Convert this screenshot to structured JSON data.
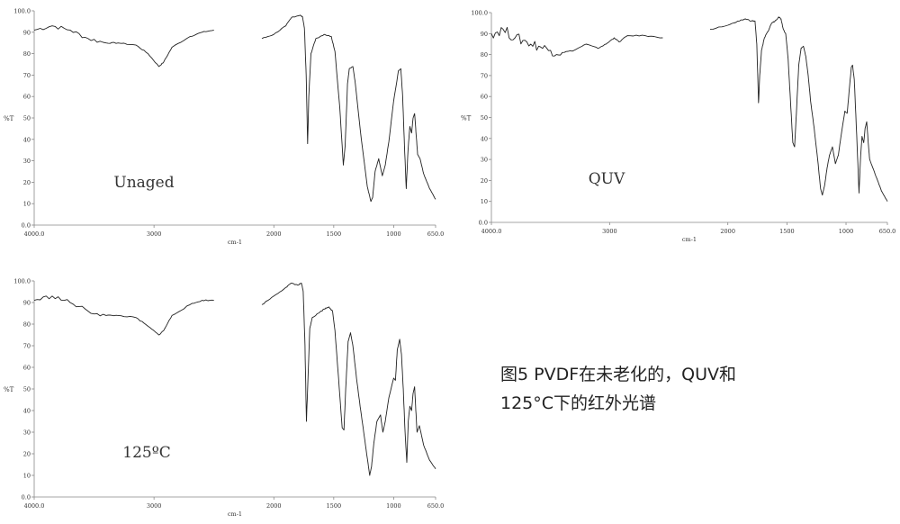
{
  "chart_data": [
    {
      "type": "line",
      "label": "Unaged",
      "xlabel": "cm-1",
      "ylabel": "%T",
      "xlim": [
        4000,
        650
      ],
      "ylim": [
        0,
        100
      ],
      "x_ticks": [
        "4000.0",
        "3000",
        "2000",
        "1500",
        "1000",
        "650.0"
      ],
      "y_ticks": [
        "0.0",
        "10",
        "20",
        "30",
        "40",
        "50",
        "60",
        "70",
        "80",
        "90",
        "100.0"
      ],
      "series": [
        {
          "segments": [
            [
              [
                4000,
                91
              ],
              [
                3850,
                93
              ],
              [
                3700,
                91
              ],
              [
                3550,
                87
              ],
              [
                3400,
                85
              ],
              [
                3300,
                85
              ],
              [
                3150,
                84
              ],
              [
                3050,
                80
              ],
              [
                2960,
                74
              ],
              [
                2920,
                76
              ],
              [
                2850,
                83
              ],
              [
                2700,
                88
              ],
              [
                2600,
                90
              ],
              [
                2500,
                91
              ]
            ],
            [
              [
                2100,
                87
              ],
              [
                2000,
                89
              ],
              [
                1900,
                93
              ],
              [
                1850,
                97
              ],
              [
                1780,
                98
              ],
              [
                1760,
                97
              ],
              [
                1745,
                92
              ],
              [
                1730,
                70
              ],
              [
                1718,
                38
              ],
              [
                1708,
                60
              ],
              [
                1690,
                80
              ],
              [
                1650,
                87
              ],
              [
                1580,
                89
              ],
              [
                1520,
                88
              ],
              [
                1490,
                81
              ],
              [
                1450,
                55
              ],
              [
                1420,
                28
              ],
              [
                1405,
                37
              ],
              [
                1385,
                66
              ],
              [
                1370,
                73
              ],
              [
                1340,
                74
              ],
              [
                1320,
                66
              ],
              [
                1270,
                40
              ],
              [
                1220,
                18
              ],
              [
                1190,
                11
              ],
              [
                1175,
                13
              ],
              [
                1155,
                25
              ],
              [
                1125,
                31
              ],
              [
                1095,
                23
              ],
              [
                1070,
                28
              ],
              [
                1040,
                39
              ],
              [
                1000,
                58
              ],
              [
                960,
                72
              ],
              [
                940,
                73
              ],
              [
                925,
                60
              ],
              [
                910,
                37
              ],
              [
                895,
                17
              ],
              [
                880,
                35
              ],
              [
                865,
                46
              ],
              [
                850,
                43
              ],
              [
                838,
                50
              ],
              [
                825,
                52
              ],
              [
                812,
                42
              ],
              [
                800,
                33
              ],
              [
                780,
                31
              ],
              [
                750,
                24
              ],
              [
                700,
                17
              ],
              [
                650,
                12
              ]
            ]
          ]
        }
      ]
    },
    {
      "type": "line",
      "label": "QUV",
      "xlabel": "cm-1",
      "ylabel": "%T",
      "xlim": [
        4000,
        650
      ],
      "ylim": [
        0,
        100
      ],
      "x_ticks": [
        "4000.0",
        "3000",
        "2000",
        "1500",
        "1000",
        "650.0"
      ],
      "y_ticks": [
        "0.0",
        "10",
        "20",
        "30",
        "40",
        "50",
        "60",
        "70",
        "80",
        "90",
        "100.0"
      ],
      "series": [
        {
          "segments": [
            [
              [
                4000,
                90
              ],
              [
                3900,
                92
              ],
              [
                3800,
                88
              ],
              [
                3700,
                86
              ],
              [
                3600,
                84
              ],
              [
                3500,
                82
              ],
              [
                3400,
                81
              ],
              [
                3300,
                82
              ],
              [
                3200,
                85
              ],
              [
                3100,
                83
              ],
              [
                3030,
                85
              ],
              [
                2960,
                88
              ],
              [
                2920,
                86
              ],
              [
                2850,
                89
              ],
              [
                2700,
                89
              ],
              [
                2550,
                88
              ]
            ],
            [
              [
                2150,
                92
              ],
              [
                2000,
                94
              ],
              [
                1900,
                96
              ],
              [
                1850,
                97
              ],
              [
                1800,
                96
              ],
              [
                1770,
                96
              ],
              [
                1755,
                85
              ],
              [
                1740,
                57
              ],
              [
                1730,
                70
              ],
              [
                1715,
                82
              ],
              [
                1690,
                88
              ],
              [
                1660,
                91
              ],
              [
                1630,
                95
              ],
              [
                1600,
                96
              ],
              [
                1570,
                98
              ],
              [
                1550,
                97
              ],
              [
                1530,
                92
              ],
              [
                1510,
                90
              ],
              [
                1490,
                78
              ],
              [
                1470,
                58
              ],
              [
                1450,
                38
              ],
              [
                1435,
                36
              ],
              [
                1420,
                52
              ],
              [
                1400,
                75
              ],
              [
                1380,
                83
              ],
              [
                1360,
                84
              ],
              [
                1340,
                79
              ],
              [
                1320,
                70
              ],
              [
                1300,
                58
              ],
              [
                1270,
                45
              ],
              [
                1240,
                30
              ],
              [
                1215,
                16
              ],
              [
                1200,
                13
              ],
              [
                1180,
                18
              ],
              [
                1160,
                26
              ],
              [
                1140,
                32
              ],
              [
                1115,
                36
              ],
              [
                1090,
                28
              ],
              [
                1065,
                32
              ],
              [
                1040,
                42
              ],
              [
                1010,
                53
              ],
              [
                990,
                52
              ],
              [
                970,
                65
              ],
              [
                955,
                74
              ],
              [
                945,
                75
              ],
              [
                930,
                68
              ],
              [
                920,
                55
              ],
              [
                905,
                35
              ],
              [
                890,
                14
              ],
              [
                878,
                30
              ],
              [
                865,
                41
              ],
              [
                850,
                38
              ],
              [
                838,
                45
              ],
              [
                825,
                48
              ],
              [
                812,
                38
              ],
              [
                800,
                30
              ],
              [
                780,
                27
              ],
              [
                740,
                21
              ],
              [
                700,
                15
              ],
              [
                650,
                10
              ]
            ]
          ]
        }
      ]
    },
    {
      "type": "line",
      "label": "125ºC",
      "xlabel": "cm-1",
      "ylabel": "%T",
      "xlim": [
        4000,
        650
      ],
      "ylim": [
        0,
        100
      ],
      "x_ticks": [
        "4000.0",
        "3000",
        "2000",
        "1500",
        "1000",
        "650.0"
      ],
      "y_ticks": [
        "0.0",
        "10",
        "20",
        "30",
        "40",
        "50",
        "60",
        "70",
        "80",
        "90",
        "100.0"
      ],
      "series": [
        {
          "segments": [
            [
              [
                4000,
                91
              ],
              [
                3850,
                93
              ],
              [
                3700,
                90
              ],
              [
                3550,
                86
              ],
              [
                3400,
                84
              ],
              [
                3300,
                84
              ],
              [
                3150,
                83
              ],
              [
                3050,
                79
              ],
              [
                2960,
                75
              ],
              [
                2920,
                77
              ],
              [
                2850,
                84
              ],
              [
                2700,
                89
              ],
              [
                2600,
                91
              ],
              [
                2500,
                91
              ]
            ],
            [
              [
                2100,
                89
              ],
              [
                2000,
                93
              ],
              [
                1900,
                97
              ],
              [
                1850,
                99
              ],
              [
                1800,
                98
              ],
              [
                1770,
                99
              ],
              [
                1755,
                95
              ],
              [
                1740,
                70
              ],
              [
                1728,
                35
              ],
              [
                1718,
                50
              ],
              [
                1700,
                78
              ],
              [
                1680,
                83
              ],
              [
                1630,
                85
              ],
              [
                1580,
                87
              ],
              [
                1540,
                88
              ],
              [
                1510,
                86
              ],
              [
                1490,
                77
              ],
              [
                1460,
                55
              ],
              [
                1430,
                32
              ],
              [
                1415,
                31
              ],
              [
                1400,
                50
              ],
              [
                1380,
                72
              ],
              [
                1360,
                76
              ],
              [
                1340,
                70
              ],
              [
                1310,
                55
              ],
              [
                1280,
                42
              ],
              [
                1250,
                30
              ],
              [
                1220,
                18
              ],
              [
                1200,
                10
              ],
              [
                1185,
                14
              ],
              [
                1165,
                25
              ],
              [
                1140,
                35
              ],
              [
                1110,
                38
              ],
              [
                1090,
                30
              ],
              [
                1070,
                35
              ],
              [
                1040,
                46
              ],
              [
                1000,
                55
              ],
              [
                985,
                54
              ],
              [
                970,
                68
              ],
              [
                950,
                73
              ],
              [
                935,
                66
              ],
              [
                920,
                50
              ],
              [
                905,
                30
              ],
              [
                890,
                16
              ],
              [
                878,
                35
              ],
              [
                865,
                42
              ],
              [
                850,
                40
              ],
              [
                838,
                48
              ],
              [
                825,
                51
              ],
              [
                815,
                40
              ],
              [
                805,
                30
              ],
              [
                785,
                33
              ],
              [
                750,
                24
              ],
              [
                700,
                17
              ],
              [
                650,
                13
              ]
            ]
          ]
        }
      ]
    }
  ],
  "caption": {
    "line1": "图5 PVDF在未老化的，QUV和",
    "line2": "125°C下的红外光谱"
  }
}
